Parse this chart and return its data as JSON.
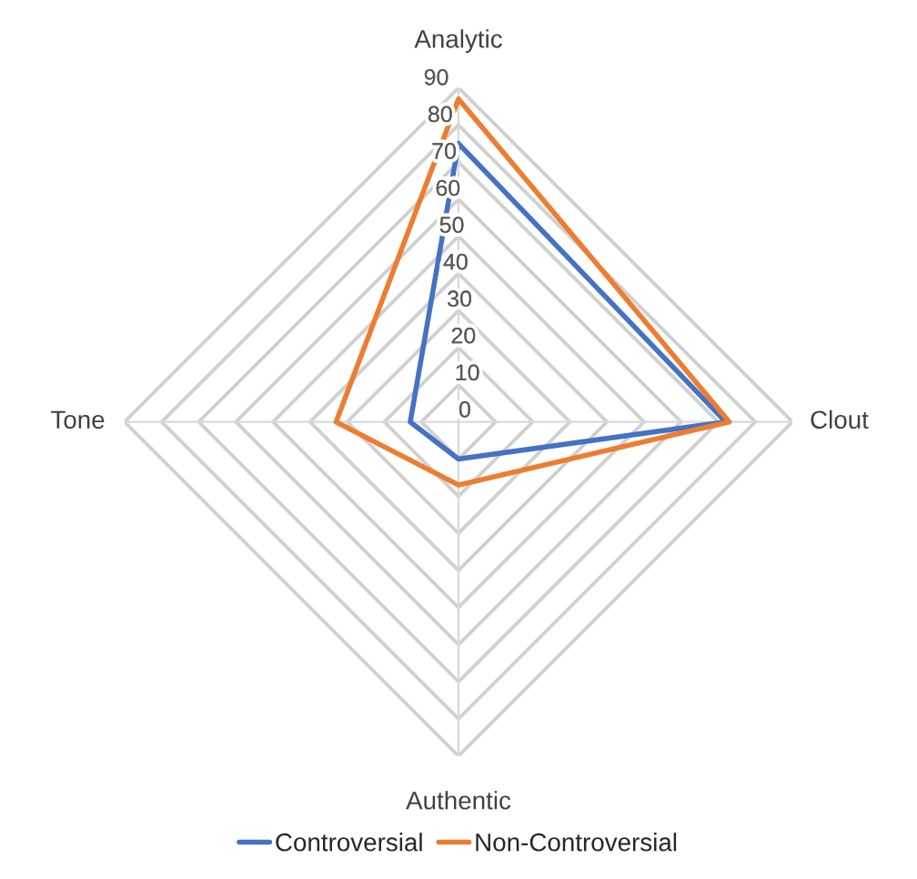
{
  "chart_data": {
    "type": "radar",
    "categories": [
      "Analytic",
      "Clout",
      "Authentic",
      "Tone"
    ],
    "series": [
      {
        "name": "Controversial",
        "color": "#4472c4",
        "values": [
          75,
          72,
          10,
          13
        ]
      },
      {
        "name": "Non-Controversial",
        "color": "#ed7d31",
        "values": [
          87,
          73,
          17,
          33
        ]
      }
    ],
    "ylim": [
      0,
      90
    ],
    "yticks": [
      0,
      10,
      20,
      30,
      40,
      50,
      60,
      70,
      80,
      90
    ],
    "grid": true,
    "legend": "bottom",
    "marker": "none",
    "line_style": "solid"
  }
}
